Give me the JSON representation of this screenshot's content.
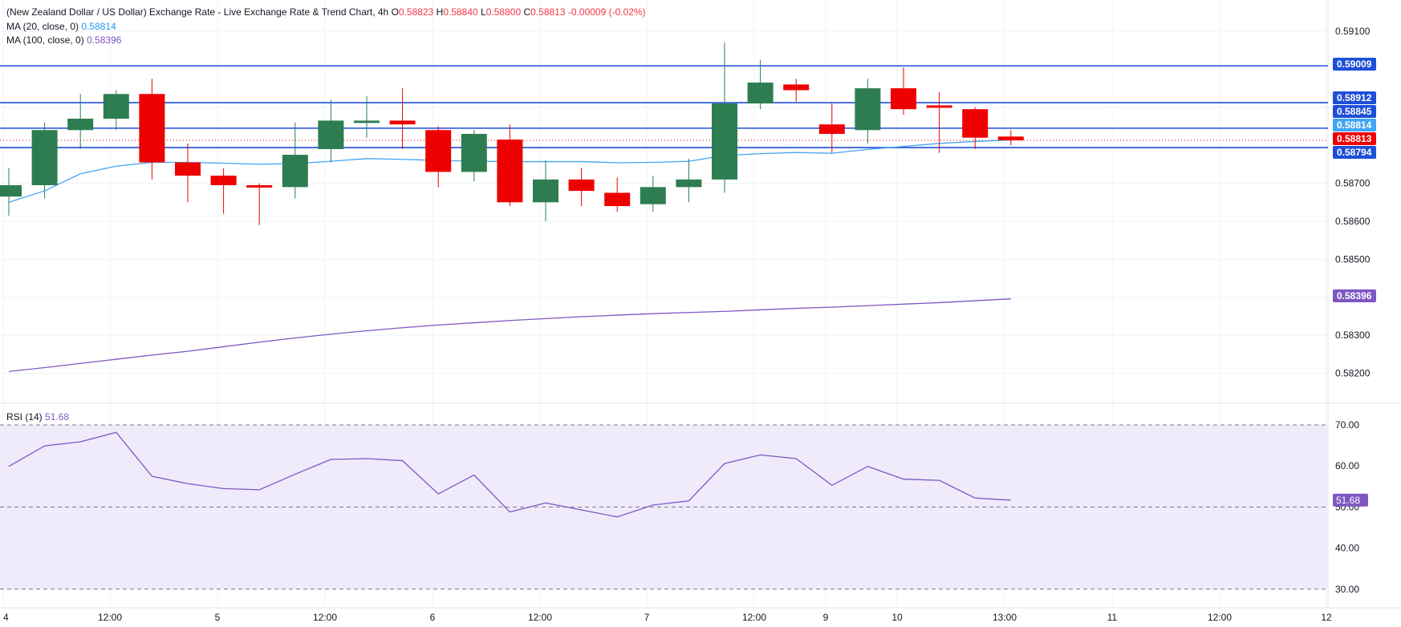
{
  "header": {
    "title": "(New Zealand Dollar / US Dollar) Exchange Rate - Live Exchange Rate & Trend Chart, 4h",
    "o_label": "O",
    "o": "0.58823",
    "h_label": "H",
    "h": "0.58840",
    "l_label": "L",
    "l": "0.58800",
    "c_label": "C",
    "c": "0.58813",
    "change": "-0.00009 (-0.02%)"
  },
  "indicators": {
    "ma20_label": "MA (20, close, 0)",
    "ma20_value": "0.58814",
    "ma100_label": "MA (100, close, 0)",
    "ma100_value": "0.58396",
    "rsi_label": "RSI (14)",
    "rsi_value": "51.68"
  },
  "colors": {
    "up": "#2e7d51",
    "down": "#ee0000",
    "ma20": "#42a5f5",
    "ma100": "#7e57c2",
    "hline": "#1e4fd8",
    "rsi_band": "#efebfa",
    "grid": "#f0f3fa"
  },
  "chart_data": [
    {
      "type": "candlestick",
      "price_axis": {
        "ticks": [
          "0.59100",
          "0.58700",
          "0.58600",
          "0.58500",
          "0.58300",
          "0.58200"
        ],
        "range": [
          0.5812,
          0.5915
        ]
      },
      "time_axis": {
        "ticks": [
          "4",
          "12:00",
          "5",
          "12:00",
          "6",
          "12:00",
          "7",
          "12:00",
          "9",
          "10",
          "13:00",
          "11",
          "12:00",
          "12"
        ]
      },
      "candles": [
        {
          "o": 0.58665,
          "h": 0.5874,
          "l": 0.58615,
          "c": 0.58695
        },
        {
          "o": 0.58695,
          "h": 0.5886,
          "l": 0.5866,
          "c": 0.5884
        },
        {
          "o": 0.5884,
          "h": 0.58935,
          "l": 0.5879,
          "c": 0.5887
        },
        {
          "o": 0.5887,
          "h": 0.58945,
          "l": 0.5884,
          "c": 0.58935
        },
        {
          "o": 0.58935,
          "h": 0.58975,
          "l": 0.5871,
          "c": 0.58755
        },
        {
          "o": 0.58755,
          "h": 0.58805,
          "l": 0.5865,
          "c": 0.5872
        },
        {
          "o": 0.5872,
          "h": 0.5874,
          "l": 0.5862,
          "c": 0.58695
        },
        {
          "o": 0.58695,
          "h": 0.587,
          "l": 0.5859,
          "c": 0.5869
        },
        {
          "o": 0.5869,
          "h": 0.5886,
          "l": 0.5866,
          "c": 0.58775
        },
        {
          "o": 0.5879,
          "h": 0.5892,
          "l": 0.58755,
          "c": 0.58865
        },
        {
          "o": 0.5886,
          "h": 0.5893,
          "l": 0.5882,
          "c": 0.58865
        },
        {
          "o": 0.58865,
          "h": 0.5895,
          "l": 0.5879,
          "c": 0.58855
        },
        {
          "o": 0.5884,
          "h": 0.5885,
          "l": 0.5869,
          "c": 0.5873
        },
        {
          "o": 0.5873,
          "h": 0.5884,
          "l": 0.58705,
          "c": 0.5883
        },
        {
          "o": 0.58815,
          "h": 0.58855,
          "l": 0.5864,
          "c": 0.5865
        },
        {
          "o": 0.5865,
          "h": 0.5876,
          "l": 0.586,
          "c": 0.5871
        },
        {
          "o": 0.5871,
          "h": 0.5874,
          "l": 0.5864,
          "c": 0.5868
        },
        {
          "o": 0.58675,
          "h": 0.58715,
          "l": 0.58625,
          "c": 0.5864
        },
        {
          "o": 0.58645,
          "h": 0.5872,
          "l": 0.58625,
          "c": 0.5869
        },
        {
          "o": 0.5869,
          "h": 0.58765,
          "l": 0.5865,
          "c": 0.5871
        },
        {
          "o": 0.5871,
          "h": 0.5907,
          "l": 0.58675,
          "c": 0.5891
        },
        {
          "o": 0.5891,
          "h": 0.59025,
          "l": 0.58895,
          "c": 0.58965
        },
        {
          "o": 0.5896,
          "h": 0.58975,
          "l": 0.58915,
          "c": 0.58945
        },
        {
          "o": 0.58855,
          "h": 0.5891,
          "l": 0.5878,
          "c": 0.5883
        },
        {
          "o": 0.5884,
          "h": 0.58975,
          "l": 0.58805,
          "c": 0.5895
        },
        {
          "o": 0.5895,
          "h": 0.59005,
          "l": 0.5888,
          "c": 0.58895
        },
        {
          "o": 0.58905,
          "h": 0.5894,
          "l": 0.5878,
          "c": 0.589
        },
        {
          "o": 0.58895,
          "h": 0.589,
          "l": 0.5879,
          "c": 0.5882
        },
        {
          "o": 0.58823,
          "h": 0.5884,
          "l": 0.588,
          "c": 0.58813
        }
      ],
      "ma20": [
        0.5865,
        0.5868,
        0.58725,
        0.58745,
        0.58755,
        0.58755,
        0.58753,
        0.5875,
        0.58752,
        0.58758,
        0.58765,
        0.58763,
        0.5876,
        0.58758,
        0.58757,
        0.58757,
        0.58757,
        0.58754,
        0.58755,
        0.58758,
        0.58773,
        0.58778,
        0.58781,
        0.58779,
        0.58789,
        0.58797,
        0.58805,
        0.5881,
        0.58814
      ],
      "ma100": [
        0.58205,
        0.58215,
        0.58226,
        0.58237,
        0.58248,
        0.58258,
        0.5827,
        0.58282,
        0.58293,
        0.58303,
        0.58312,
        0.5832,
        0.58327,
        0.58333,
        0.58339,
        0.58344,
        0.58349,
        0.58353,
        0.58357,
        0.5836,
        0.58363,
        0.58367,
        0.58371,
        0.58374,
        0.58378,
        0.58382,
        0.58386,
        0.58391,
        0.58396
      ],
      "horizontal_levels": [
        0.59009,
        0.58912,
        0.58845,
        0.58794
      ],
      "price_labels": [
        {
          "text": "0.59009",
          "bg": "#1e4fd8",
          "fg": "#ffffff",
          "y": 0.59009
        },
        {
          "text": "0.58912",
          "bg": "#1e4fd8",
          "fg": "#ffffff",
          "y": 0.58912
        },
        {
          "text": "0.58845",
          "bg": "#1e4fd8",
          "fg": "#ffffff",
          "y": 0.58845
        },
        {
          "text": "0.58814",
          "bg": "#42a5f5",
          "fg": "#ffffff",
          "y": 0.58814
        },
        {
          "text": "0.58813",
          "bg": "#ee0000",
          "fg": "#ffffff",
          "y": 0.58813
        },
        {
          "text": "0.58794",
          "bg": "#1e4fd8",
          "fg": "#ffffff",
          "y": 0.58794
        },
        {
          "text": "0.58396",
          "bg": "#7e57c2",
          "fg": "#ffffff",
          "y": 0.58396
        }
      ]
    },
    {
      "type": "line",
      "name": "RSI (14)",
      "y_axis": {
        "ticks": [
          "70.00",
          "60.00",
          "50.00",
          "40.00",
          "30.00"
        ],
        "range": [
          27,
          73
        ]
      },
      "band": [
        30,
        70
      ],
      "midline": 50,
      "values": [
        59.9,
        64.9,
        65.9,
        68.2,
        57.5,
        55.7,
        54.5,
        54.2,
        58.0,
        61.6,
        61.8,
        61.3,
        53.2,
        57.8,
        48.8,
        51.0,
        49.3,
        47.6,
        50.5,
        51.5,
        60.6,
        62.7,
        61.8,
        55.3,
        59.9,
        56.8,
        56.5,
        52.2,
        51.68
      ],
      "last_label": "51.68"
    }
  ]
}
